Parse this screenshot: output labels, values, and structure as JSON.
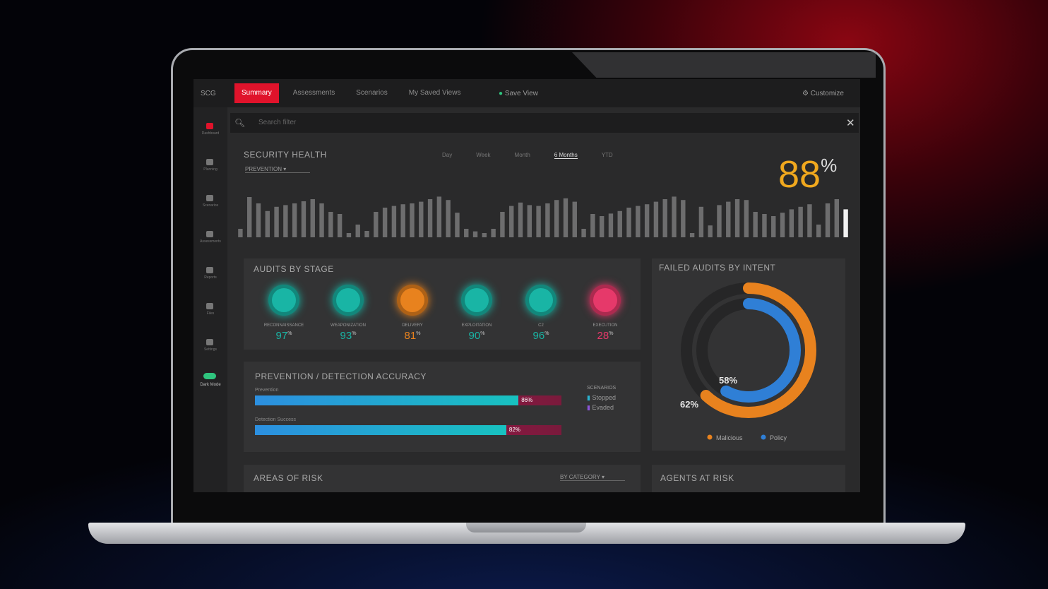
{
  "nav": {
    "logo": "SCG",
    "tabs": [
      "Summary",
      "Assessments",
      "Scenarios",
      "My Saved Views"
    ],
    "active_tab": 0,
    "save": "Save View",
    "customize": "Customize"
  },
  "sidebar": {
    "items": [
      "Dashboard",
      "Planning",
      "Scenarios",
      "Assessments",
      "Reports",
      "Files",
      "Settings"
    ],
    "toggle": "Dark Mode"
  },
  "search": {
    "placeholder": "Search filter"
  },
  "security_health": {
    "title": "SECURITY HEALTH",
    "filter": "PREVENTION",
    "ranges": [
      "Day",
      "Week",
      "Month",
      "6 Months",
      "YTD"
    ],
    "active_range": 3,
    "score": 88,
    "unit": "%",
    "values": [
      20,
      95,
      80,
      62,
      72,
      76,
      80,
      85,
      90,
      80,
      60,
      55,
      10,
      30,
      15,
      60,
      70,
      74,
      78,
      80,
      84,
      90,
      96,
      88,
      58,
      20,
      14,
      10,
      20,
      60,
      74,
      82,
      76,
      74,
      80,
      88,
      92,
      84,
      20,
      55,
      50,
      56,
      62,
      70,
      74,
      78,
      84,
      90,
      96,
      88,
      10,
      72,
      28,
      76,
      84,
      90,
      88,
      60,
      55,
      50,
      58,
      66,
      72,
      78,
      30,
      80,
      90,
      66
    ]
  },
  "audits_by_stage": {
    "title": "AUDITS BY STAGE",
    "unit": "%",
    "stages": [
      {
        "label": "RECONNAISSANCE",
        "value": 97,
        "color": "#19b5a5"
      },
      {
        "label": "WEAPONIZATION",
        "value": 93,
        "color": "#19b5a5"
      },
      {
        "label": "DELIVERY",
        "value": 81,
        "color": "#e8821e"
      },
      {
        "label": "EXPLOITATION",
        "value": 90,
        "color": "#19b5a5"
      },
      {
        "label": "C2",
        "value": 96,
        "color": "#19b5a5"
      },
      {
        "label": "EXECUTION",
        "value": 28,
        "color": "#e6396a"
      }
    ]
  },
  "accuracy": {
    "title": "PREVENTION / DETECTION ACCURACY",
    "unit": "%",
    "legend_title": "SCENARIOS",
    "legend": [
      "Stopped",
      "Evaded"
    ],
    "bars": [
      {
        "label": "Prevention",
        "value": 86
      },
      {
        "label": "Detection Success",
        "value": 82
      }
    ]
  },
  "failed_audits": {
    "title": "FAILED AUDITS BY INTENT",
    "unit": "%",
    "series": [
      {
        "name": "Malicious",
        "value": 62,
        "color": "#e8821e"
      },
      {
        "name": "Policy",
        "value": 58,
        "color": "#2f7fd6"
      }
    ]
  },
  "areas_of_risk": {
    "title": "AREAS OF RISK",
    "filter": "BY CATEGORY"
  },
  "agents_at_risk": {
    "title": "AGENTS AT RISK"
  }
}
